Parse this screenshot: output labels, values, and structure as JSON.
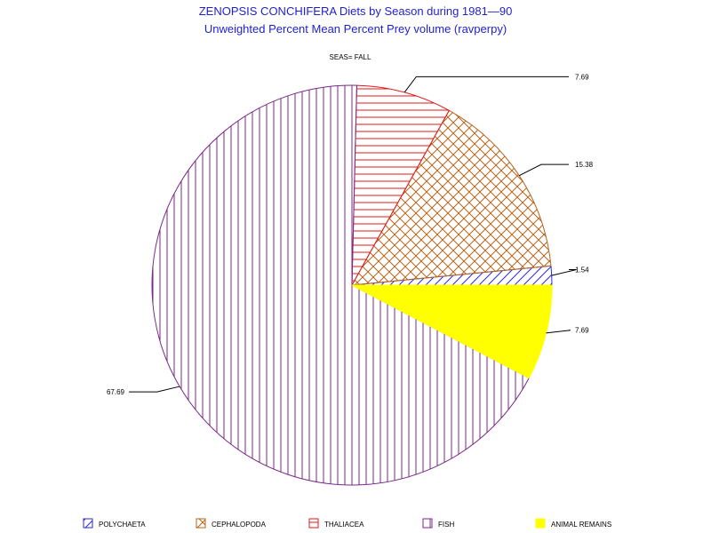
{
  "chart_data": {
    "type": "pie",
    "title": "ZENOPSIS CONCHIFERA Diets by Season during 1981—90",
    "subtitle": "Unweighted Percent Mean Percent Prey  volume (ravperpy)",
    "panel_label": "SEAS= FALL",
    "slices": [
      {
        "name": "POLYCHAETA",
        "value": 1.54,
        "label": "1.54",
        "color": "#2a2ad8",
        "pattern": "diag-right"
      },
      {
        "name": "CEPHALOPODA",
        "value": 15.38,
        "label": "15.38",
        "color": "#b5651d",
        "pattern": "crosshatch"
      },
      {
        "name": "THALIACEA",
        "value": 7.69,
        "label": "7.69",
        "color": "#e01818",
        "pattern": "horizontal"
      },
      {
        "name": "FISH",
        "value": 67.69,
        "label": "67.69",
        "color": "#7a2a8a",
        "pattern": "vertical"
      },
      {
        "name": "ANIMAL REMAINS",
        "value": 7.69,
        "label": "7.69",
        "color": "#ffff00",
        "pattern": "solid"
      }
    ],
    "legend_position": "bottom"
  }
}
